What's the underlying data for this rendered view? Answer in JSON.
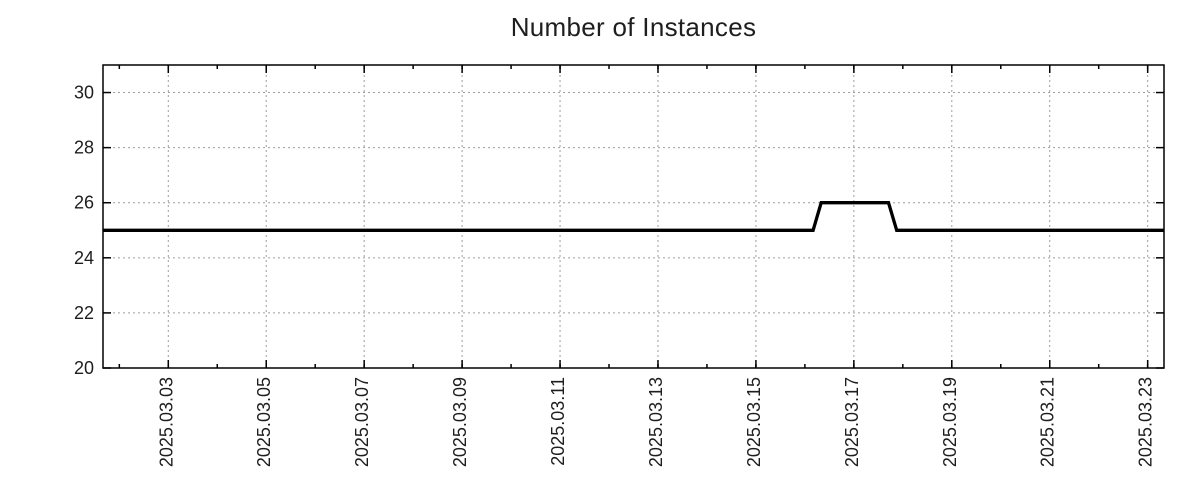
{
  "chart_data": {
    "type": "line",
    "title": "Number of Instances",
    "xlabel": "",
    "ylabel": "",
    "legend": "none",
    "grid": true,
    "x_start": "2025-03-01T16:00:00",
    "x_end": "2025-03-23T08:00:00",
    "x_minor_tick_interval_days": 1,
    "x_major_ticks": [
      {
        "label": "2025.03.03",
        "date": "2025-03-03T00:00:00"
      },
      {
        "label": "2025.03.05",
        "date": "2025-03-05T00:00:00"
      },
      {
        "label": "2025.03.07",
        "date": "2025-03-07T00:00:00"
      },
      {
        "label": "2025.03.09",
        "date": "2025-03-09T00:00:00"
      },
      {
        "label": "2025.03.11",
        "date": "2025-03-11T00:00:00"
      },
      {
        "label": "2025.03.13",
        "date": "2025-03-13T00:00:00"
      },
      {
        "label": "2025.03.15",
        "date": "2025-03-15T00:00:00"
      },
      {
        "label": "2025.03.17",
        "date": "2025-03-17T00:00:00"
      },
      {
        "label": "2025.03.19",
        "date": "2025-03-19T00:00:00"
      },
      {
        "label": "2025.03.21",
        "date": "2025-03-21T00:00:00"
      },
      {
        "label": "2025.03.23",
        "date": "2025-03-23T00:00:00"
      }
    ],
    "ylim": [
      20,
      31
    ],
    "y_ticks": [
      20,
      22,
      24,
      26,
      28,
      30
    ],
    "series": [
      {
        "name": "Number of Instances",
        "color": "#000000",
        "points": [
          [
            "2025-03-01T16:00:00",
            25
          ],
          [
            "2025-03-16T04:00:00",
            25
          ],
          [
            "2025-03-16T08:00:00",
            26
          ],
          [
            "2025-03-17T17:00:00",
            26
          ],
          [
            "2025-03-17T21:00:00",
            25
          ],
          [
            "2025-03-23T08:00:00",
            25
          ]
        ]
      }
    ]
  },
  "style": {
    "background": "#ffffff",
    "line_color": "#000000",
    "grid_color": "#9e9e9e",
    "axis_color": "#000000",
    "text_color": "#1e1e1e"
  }
}
